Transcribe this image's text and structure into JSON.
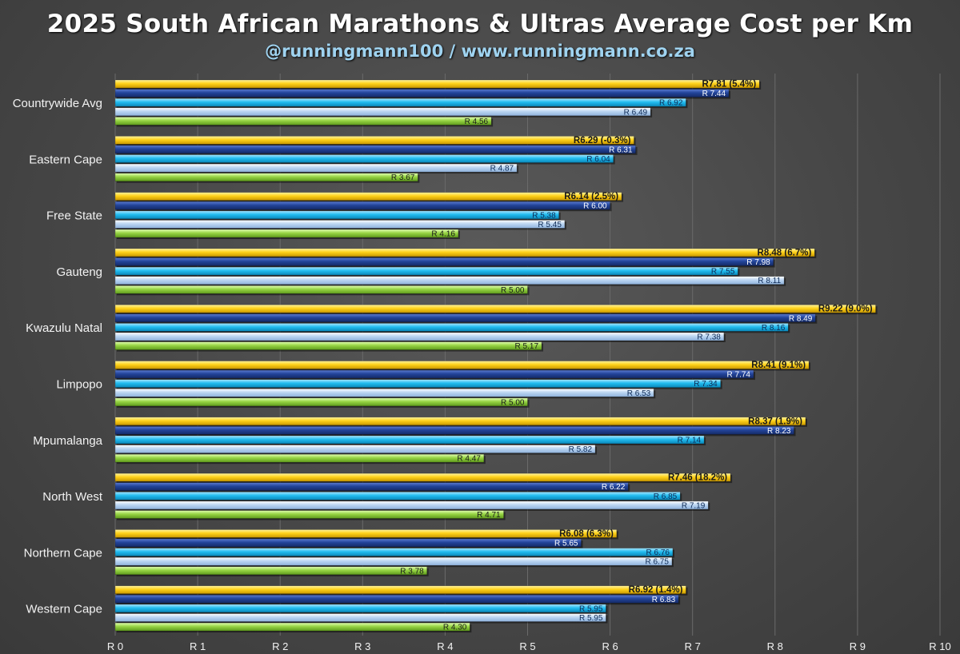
{
  "title": "2025 South African Marathons & Ultras Average Cost per Km",
  "subtitle": "@runningmann100 / www.runningmann.co.za",
  "colors": {
    "background": "#474747",
    "grid": "#6a6a6a",
    "text": "#f2f2f2"
  },
  "chart_data": {
    "type": "bar",
    "orientation": "horizontal",
    "title": "2025 South African Marathons & Ultras Average Cost per Km",
    "xlim": [
      0,
      10
    ],
    "x_ticks": [
      "R 0",
      "R 1",
      "R 2",
      "R 3",
      "R 4",
      "R 5",
      "R 6",
      "R 7",
      "R 8",
      "R 9",
      "R 10"
    ],
    "grid": true,
    "legend": "none",
    "categories": [
      "Countrywide Avg",
      "Eastern Cape",
      "Free State",
      "Gauteng",
      "Kwazulu Natal",
      "Limpopo",
      "Mpumalanga",
      "North West",
      "Northern Cape",
      "Western Cape"
    ],
    "series": [
      {
        "name": "series-1",
        "color": "#f5c400",
        "values": [
          7.81,
          6.29,
          6.14,
          8.48,
          9.22,
          8.41,
          8.37,
          7.46,
          6.08,
          6.92
        ],
        "labels": [
          "R7.81 (5.4%)",
          "R6.29 (-0.3%)",
          "R6.14 (2.5%)",
          "R8.48 (6.7%)",
          "R9.22 (9.0%)",
          "R8.41 (9.1%)",
          "R8.37 (1.9%)",
          "R7.46 (18.2%)",
          "R6.08 (6.3%)",
          "R6.92 (1.4%)"
        ]
      },
      {
        "name": "series-2",
        "color": "#1f3d8c",
        "values": [
          7.44,
          6.31,
          6.0,
          7.98,
          8.49,
          7.74,
          8.23,
          6.22,
          5.65,
          6.83
        ],
        "labels": [
          "R 7.44",
          "R 6.31",
          "R 6.00",
          "R 7.98",
          "R 8.49",
          "R 7.74",
          "R 8.23",
          "R 6.22",
          "R 5.65",
          "R 6.83"
        ]
      },
      {
        "name": "series-3",
        "color": "#1fb6ea",
        "values": [
          6.92,
          6.04,
          5.38,
          7.55,
          8.16,
          7.34,
          7.14,
          6.85,
          6.76,
          5.95
        ],
        "labels": [
          "R 6.92",
          "R 6.04",
          "R 5.38",
          "R 7.55",
          "R 8.16",
          "R 7.34",
          "R 7.14",
          "R 6.85",
          "R 6.76",
          "R 5.95"
        ]
      },
      {
        "name": "series-4",
        "color": "#b7d3f0",
        "values": [
          6.49,
          4.87,
          5.45,
          8.11,
          7.38,
          6.53,
          5.82,
          7.19,
          6.75,
          5.95
        ],
        "labels": [
          "R 6.49",
          "R 4.87",
          "R 5.45",
          "R 8.11",
          "R 7.38",
          "R 6.53",
          "R 5.82",
          "R 7.19",
          "R 6.75",
          "R 5.95"
        ]
      },
      {
        "name": "series-5",
        "color": "#8fce3c",
        "values": [
          4.56,
          3.67,
          4.16,
          5.0,
          5.17,
          5.0,
          4.47,
          4.71,
          3.78,
          4.3
        ],
        "labels": [
          "R 4.56",
          "R 3.67",
          "R 4.16",
          "R 5.00",
          "R 5.17",
          "R 5.00",
          "R 4.47",
          "R 4.71",
          "R 3.78",
          "R 4.30"
        ]
      }
    ]
  }
}
